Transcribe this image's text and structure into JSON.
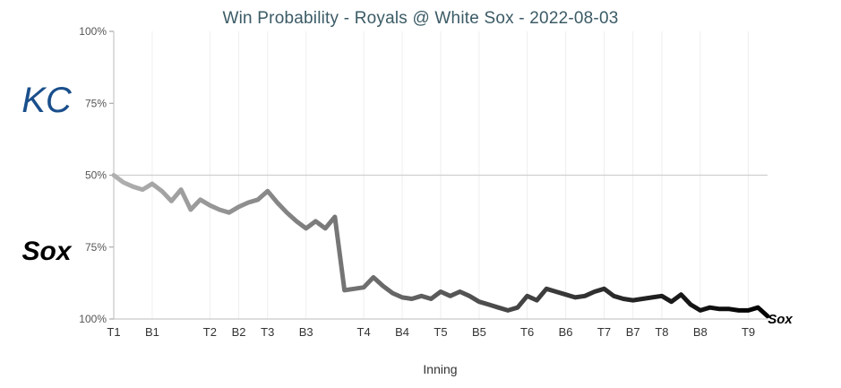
{
  "chart_data": {
    "type": "line",
    "title": "Win Probability - Royals @ White Sox - 2022-08-03",
    "xlabel": "Inning",
    "ylabel": "",
    "y_tick_labels": [
      "100%",
      "75%",
      "50%",
      "75%",
      "100%"
    ],
    "ylim": [
      -100,
      100
    ],
    "x_tick_labels": [
      "T1",
      "B1",
      "T2",
      "B2",
      "T3",
      "B3",
      "T4",
      "B4",
      "T5",
      "B5",
      "T6",
      "B6",
      "T7",
      "B7",
      "T8",
      "B8",
      "T9"
    ],
    "x_tick_positions": [
      0,
      4,
      10,
      13,
      16,
      20,
      26,
      30,
      34,
      38,
      43,
      47,
      51,
      54,
      57,
      61,
      66
    ],
    "xlim": [
      0,
      68
    ],
    "reference_line": 0,
    "teams": {
      "top": {
        "name": "Royals",
        "logo": "KC",
        "color": "#1a4f8b"
      },
      "bottom": {
        "name": "White Sox",
        "logo": "Sox",
        "color": "#000000"
      }
    },
    "series": [
      {
        "name": "",
        "x": [
          0,
          1,
          2,
          3,
          4,
          5,
          6,
          7,
          8,
          9,
          10,
          11,
          12,
          13,
          14,
          15,
          16,
          17,
          18,
          19,
          20,
          21,
          22,
          23,
          24,
          25,
          26,
          27,
          28,
          29,
          30,
          31,
          32,
          33,
          34,
          35,
          36,
          37,
          38,
          39,
          40,
          41,
          42,
          43,
          44,
          45,
          46,
          47,
          48,
          49,
          50,
          51,
          52,
          53,
          54,
          55,
          56,
          57,
          58,
          59,
          60,
          61,
          62,
          63,
          64,
          65,
          66,
          67,
          68
        ],
        "values": [
          0,
          -5,
          -8,
          -10,
          -6,
          -11,
          -18,
          -10,
          -24,
          -17,
          -21,
          -24,
          -26,
          -22,
          -19,
          -17,
          -11,
          -19,
          -26,
          -32,
          -37,
          -32,
          -37,
          -29,
          -80,
          -79,
          -78,
          -71,
          -77,
          -82,
          -85,
          -86,
          -84,
          -86,
          -81,
          -84,
          -81,
          -84,
          -88,
          -90,
          -92,
          -94,
          -92,
          -84,
          -87,
          -79,
          -81,
          -83,
          -85,
          -84,
          -81,
          -79,
          -84,
          -86,
          -87,
          -86,
          -85,
          -84,
          -88,
          -83,
          -90,
          -94,
          -92,
          -93,
          -93,
          -94,
          -94,
          -92,
          -98
        ]
      }
    ],
    "line_color_start": "#b0b0b0",
    "line_color_end": "#000000"
  }
}
